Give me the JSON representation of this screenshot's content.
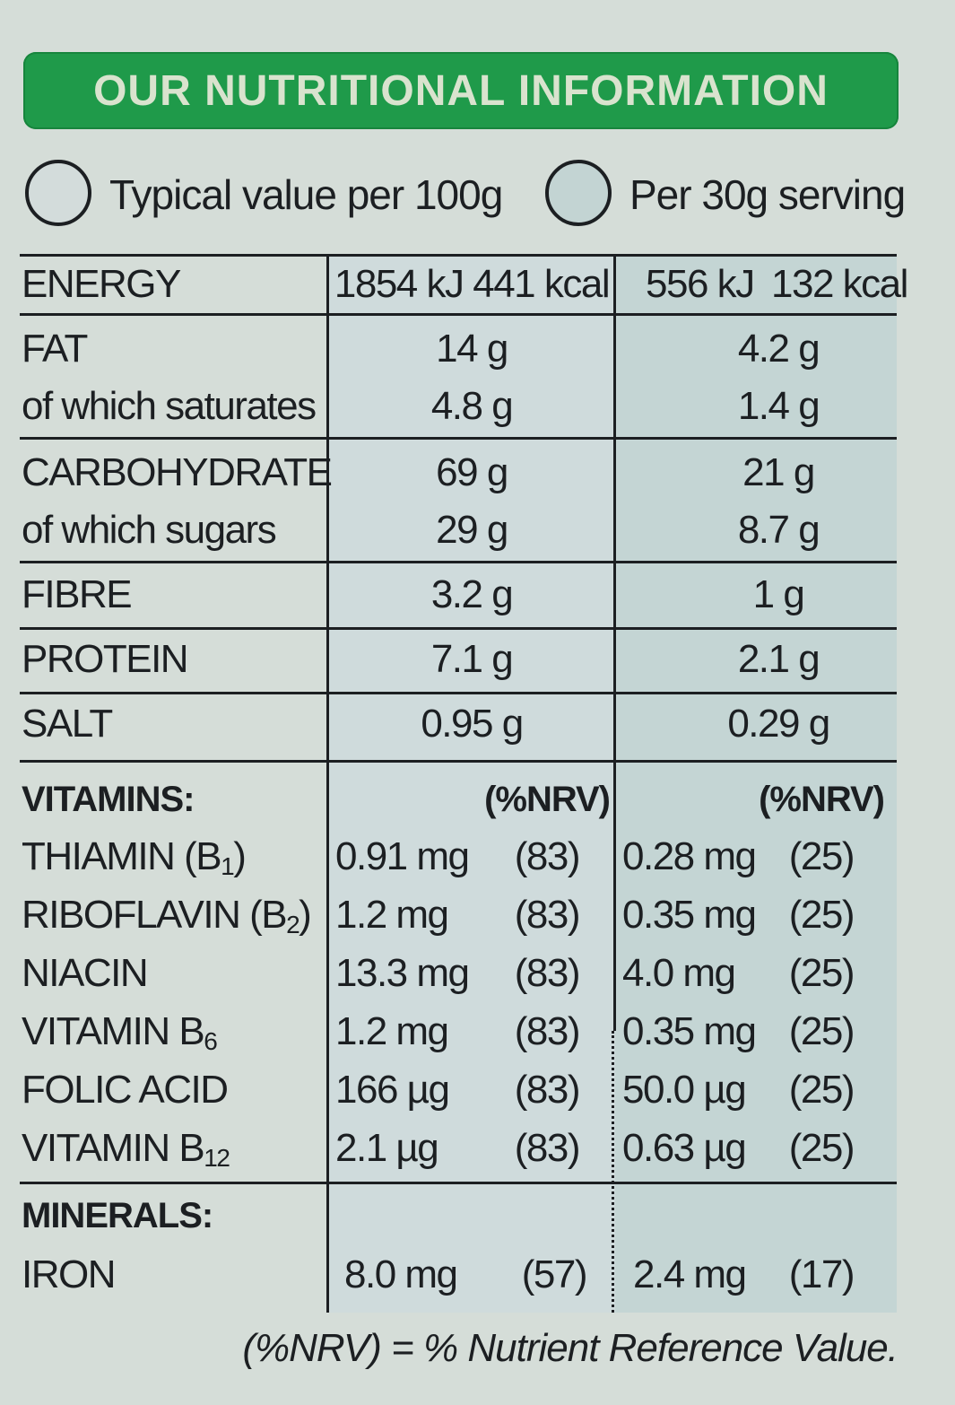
{
  "title": "OUR NUTRITIONAL INFORMATION",
  "legend": {
    "per100g": "Typical value per 100g",
    "perServing": "Per 30g serving"
  },
  "energy": {
    "label": "ENERGY",
    "per100g": "1854 kJ 441 kcal",
    "perServing_kj": "556 kJ",
    "perServing_kcal": "132 kcal"
  },
  "fat": {
    "label": "FAT",
    "per100g": "14 g",
    "perServing": "4.2 g"
  },
  "saturates": {
    "label": "of which saturates",
    "per100g": "4.8 g",
    "perServing": "1.4 g"
  },
  "carbohydrate": {
    "label": "CARBOHYDRATE",
    "per100g": "69 g",
    "perServing": "21 g"
  },
  "sugars": {
    "label": "of which sugars",
    "per100g": "29 g",
    "perServing": "8.7 g"
  },
  "fibre": {
    "label": "FIBRE",
    "per100g": "3.2 g",
    "perServing": "1 g"
  },
  "protein": {
    "label": "PROTEIN",
    "per100g": "7.1 g",
    "perServing": "2.1 g"
  },
  "salt": {
    "label": "SALT",
    "per100g": "0.95 g",
    "perServing": "0.29 g"
  },
  "vitamins": {
    "heading": "VITAMINS:",
    "nrv_header": "(%NRV)",
    "rows": [
      {
        "name": "THIAMIN (B",
        "sub": "1",
        "suffix": ")",
        "amt100": "0.91 mg",
        "nrv100": "(83)",
        "amtServ": "0.28 mg",
        "nrvServ": "(25)"
      },
      {
        "name": "RIBOFLAVIN (B",
        "sub": "2",
        "suffix": ")",
        "amt100": "1.2 mg",
        "nrv100": "(83)",
        "amtServ": "0.35 mg",
        "nrvServ": "(25)"
      },
      {
        "name": "NIACIN",
        "sub": "",
        "suffix": "",
        "amt100": "13.3 mg",
        "nrv100": "(83)",
        "amtServ": "4.0 mg",
        "nrvServ": "(25)"
      },
      {
        "name": "VITAMIN B",
        "sub": "6",
        "suffix": "",
        "amt100": "1.2 mg",
        "nrv100": "(83)",
        "amtServ": "0.35 mg",
        "nrvServ": "(25)"
      },
      {
        "name": "FOLIC ACID",
        "sub": "",
        "suffix": "",
        "amt100": "166 µg",
        "nrv100": "(83)",
        "amtServ": "50.0 µg",
        "nrvServ": "(25)"
      },
      {
        "name": "VITAMIN B",
        "sub": "12",
        "suffix": "",
        "amt100": "2.1 µg",
        "nrv100": "(83)",
        "amtServ": "0.63 µg",
        "nrvServ": "(25)"
      }
    ]
  },
  "minerals": {
    "heading": "MINERALS:",
    "iron": {
      "name": "IRON",
      "amt100": "8.0 mg",
      "nrv100": "(57)",
      "amtServ": "2.4 mg",
      "nrvServ": "(17)"
    }
  },
  "footnote": "(%NRV) = % Nutrient Reference Value."
}
